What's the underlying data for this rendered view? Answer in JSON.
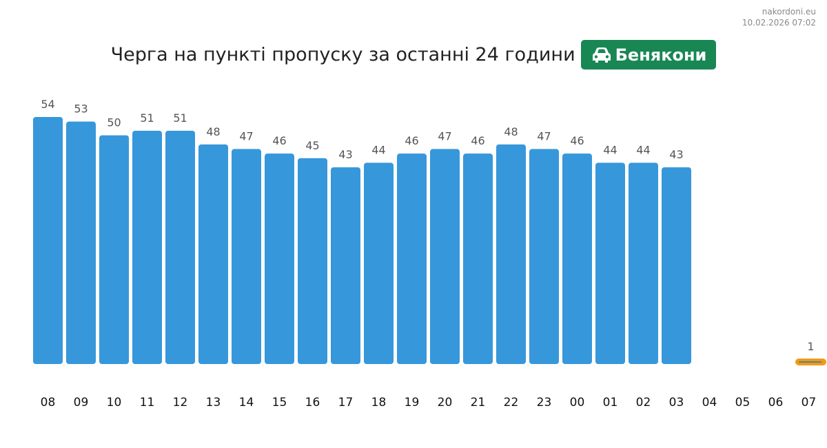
{
  "site": {
    "name": "nakordoni.eu",
    "timestamp": "10.02.2026 07:02"
  },
  "header": {
    "title": "Черга на пункті пропуску за останні 24 години",
    "checkpoint": "Бенякони",
    "checkpoint_icon": "car-icon",
    "badge_color": "#198754"
  },
  "chart_data": {
    "type": "bar",
    "title": "Черга на пункті пропуску за останні 24 години",
    "xlabel": "",
    "ylabel": "",
    "categories": [
      "08",
      "09",
      "10",
      "11",
      "12",
      "13",
      "14",
      "15",
      "16",
      "17",
      "18",
      "19",
      "20",
      "21",
      "22",
      "23",
      "00",
      "01",
      "02",
      "03",
      "04",
      "05",
      "06",
      "07"
    ],
    "values": [
      54,
      53,
      50,
      51,
      51,
      48,
      47,
      46,
      45,
      43,
      44,
      46,
      47,
      46,
      48,
      47,
      46,
      44,
      44,
      43,
      null,
      null,
      null,
      1
    ],
    "highlight_index": 23,
    "colors": {
      "bar": "#3797db",
      "highlight": "#f29b12",
      "highlight_line": "#5a7fa3"
    },
    "ylim": [
      0,
      54
    ],
    "grid": false,
    "legend": "none"
  }
}
